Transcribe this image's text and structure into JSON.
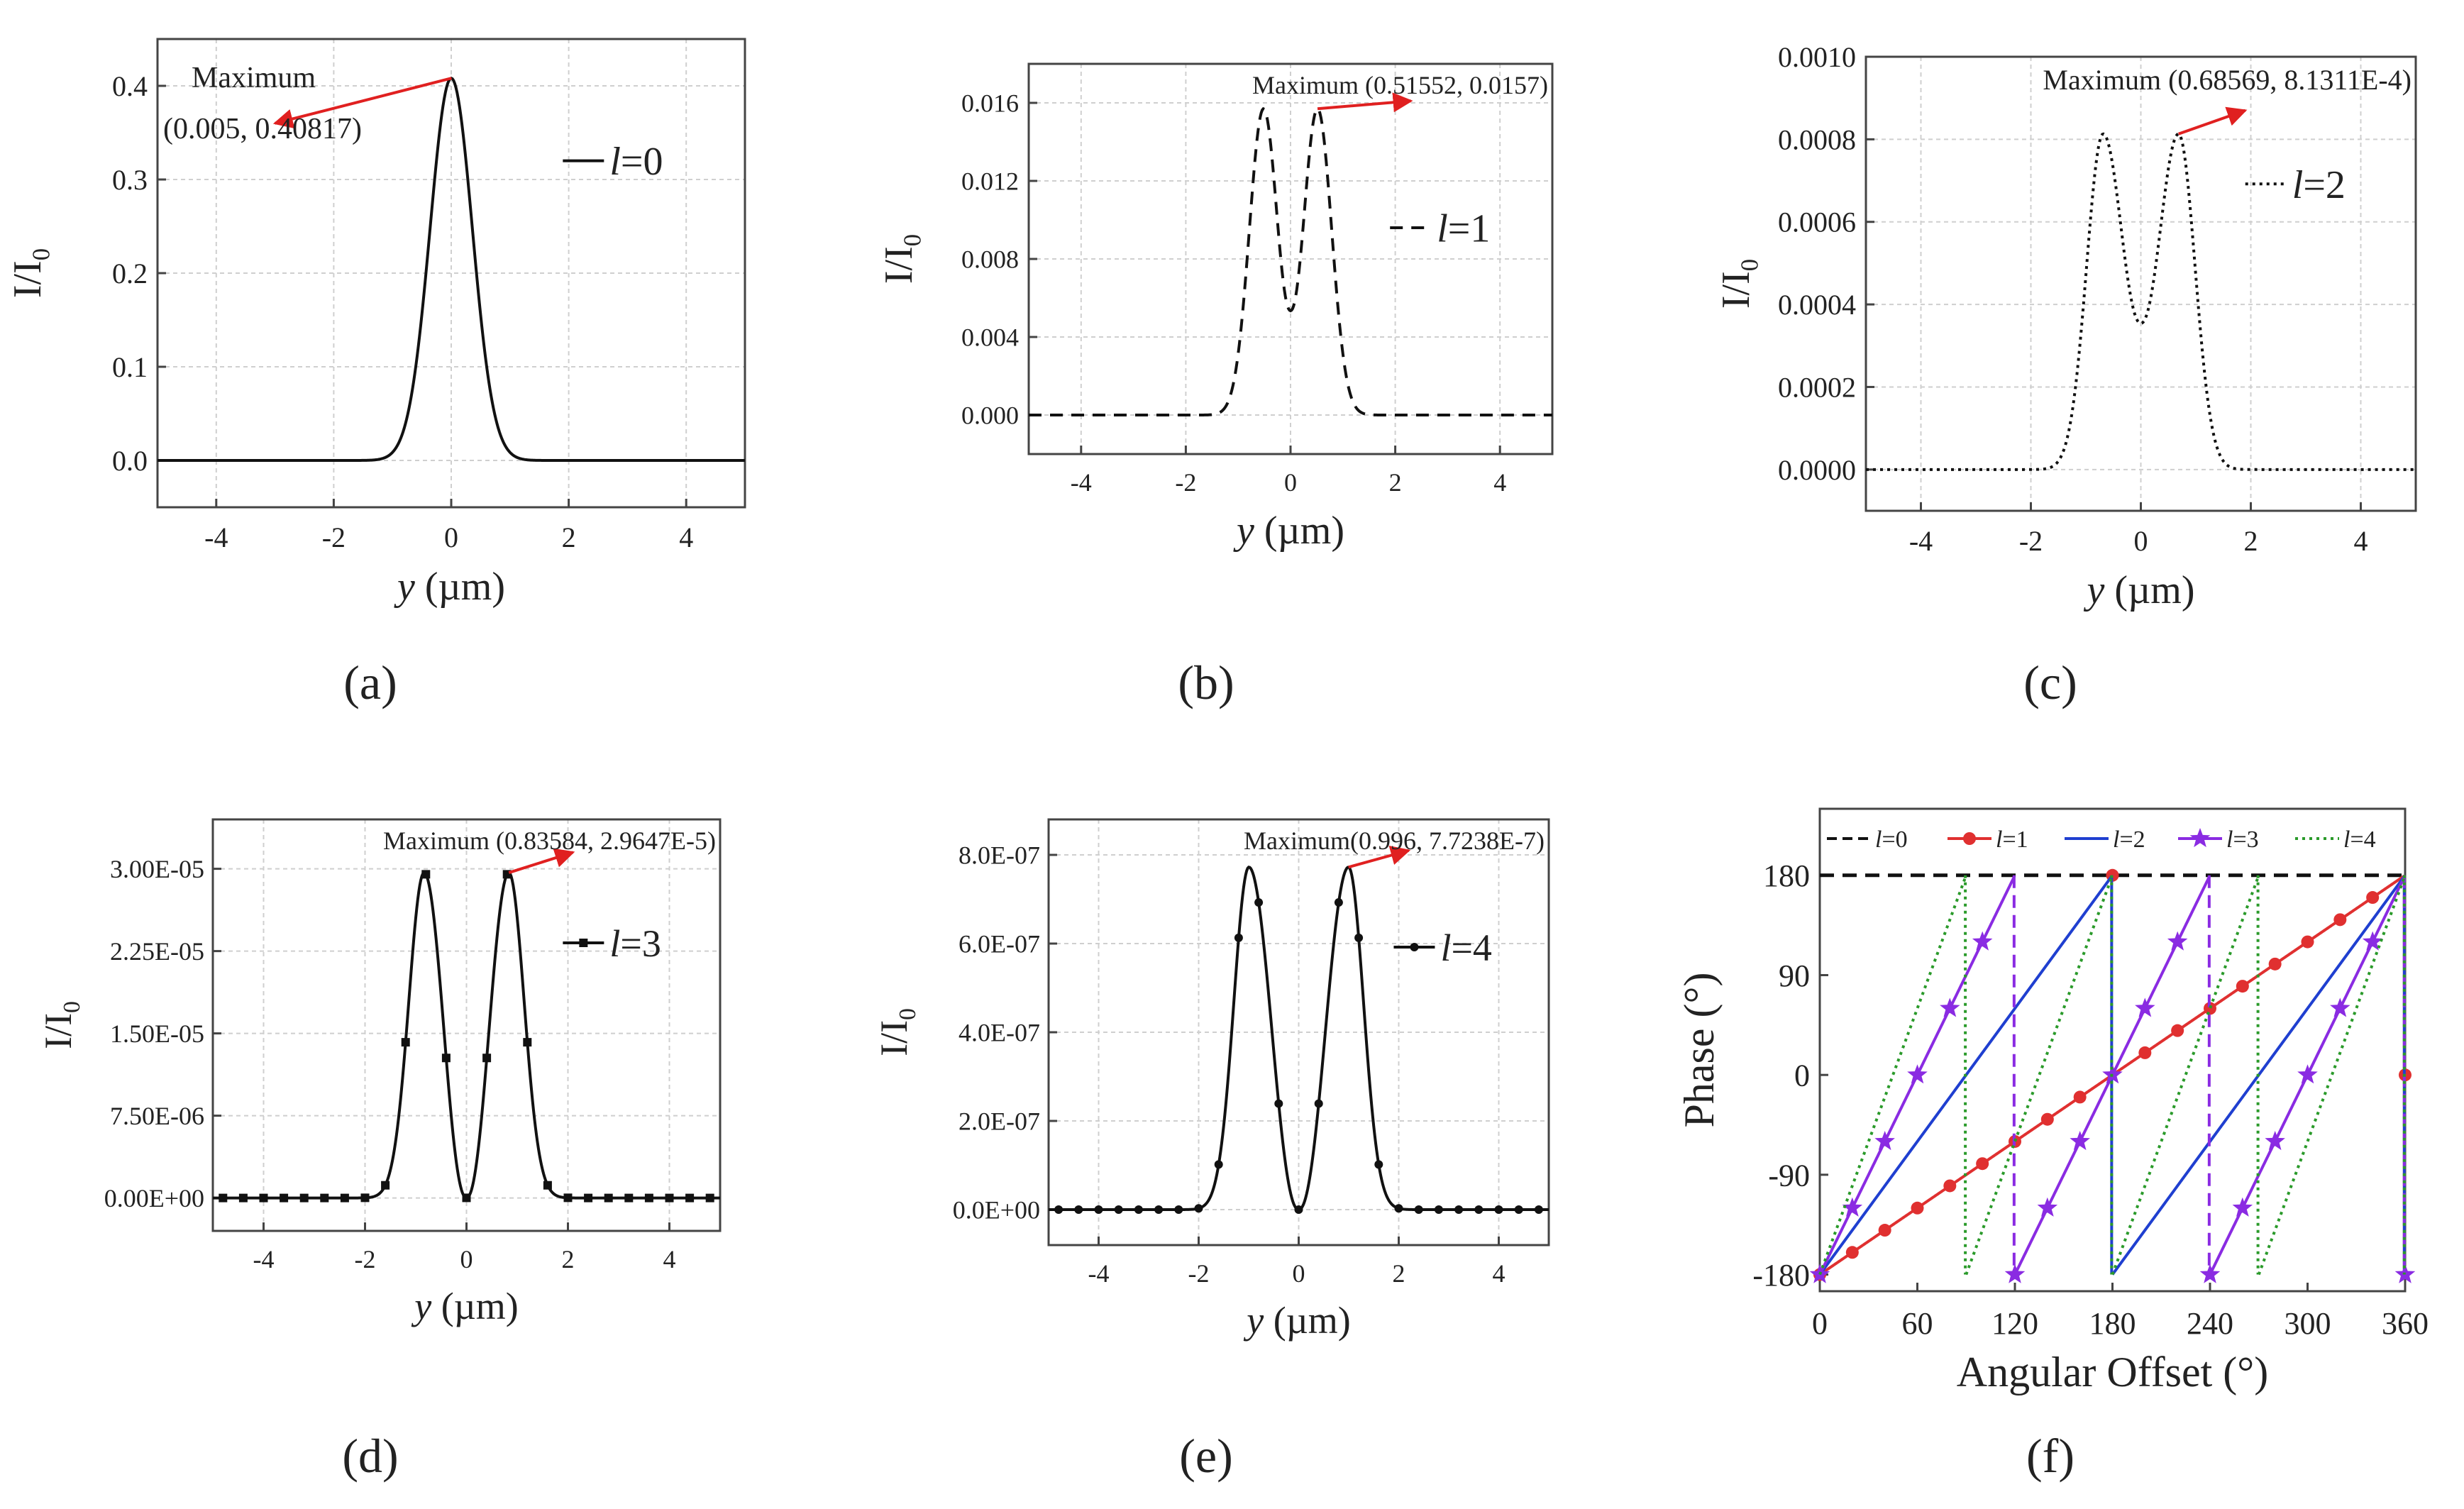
{
  "figure": {
    "panel_labels": [
      "(a)",
      "(b)",
      "(c)",
      "(d)",
      "(e)",
      "(f)"
    ]
  },
  "chart_data": [
    {
      "id": "a",
      "type": "line",
      "xlabel_var": "y",
      "xlabel_unit": "(µm)",
      "ylabel_main": "I/I",
      "ylabel_sub": "0",
      "xlim": [
        -5,
        5
      ],
      "ylim": [
        -0.05,
        0.45
      ],
      "xticks": [
        -4,
        -2,
        0,
        2,
        4
      ],
      "xtick_labels": [
        "-4",
        "-2",
        "0",
        "2",
        "4"
      ],
      "yticks": [
        0.0,
        0.1,
        0.2,
        0.3,
        0.4
      ],
      "ytick_labels": [
        "0.0",
        "0.1",
        "0.2",
        "0.3",
        "0.4"
      ],
      "grid": true,
      "series": [
        {
          "legend_var": "l",
          "legend_value": "=0",
          "style": "solid",
          "color": "#111111",
          "peak": 0.40817,
          "center": 0,
          "width": 0.4,
          "l": 0
        }
      ],
      "annotation": {
        "lines": [
          "Maximum",
          "(0.005, 0.40817)"
        ],
        "point": [
          0.005,
          0.40817
        ],
        "arrow_to": [
          -3.0,
          0.36
        ],
        "arrow_color": "#e02020"
      },
      "legend_position": "right"
    },
    {
      "id": "b",
      "type": "line",
      "xlabel_var": "y",
      "xlabel_unit": "(µm)",
      "ylabel_main": "I/I",
      "ylabel_sub": "0",
      "xlim": [
        -5,
        5
      ],
      "ylim": [
        -0.002,
        0.018
      ],
      "xticks": [
        -4,
        -2,
        0,
        2,
        4
      ],
      "xtick_labels": [
        "-4",
        "-2",
        "0",
        "2",
        "4"
      ],
      "yticks": [
        0.0,
        0.004,
        0.008,
        0.012,
        0.016
      ],
      "ytick_labels": [
        "0.000",
        "0.004",
        "0.008",
        "0.012",
        "0.016"
      ],
      "grid": true,
      "series": [
        {
          "legend_var": "l",
          "legend_value": "=1",
          "style": "dashed",
          "color": "#111111",
          "peak": 0.0157,
          "center": 0.51552,
          "width": 0.27,
          "l": 1,
          "center_value": 0.0054
        }
      ],
      "annotation": {
        "lines": [
          "Maximum (0.51552, 0.0157)"
        ],
        "point": [
          0.51552,
          0.0157
        ],
        "arrow_to": [
          2.3,
          0.0161
        ],
        "arrow_color": "#e02020"
      },
      "legend_position": "right"
    },
    {
      "id": "c",
      "type": "line",
      "xlabel_var": "y",
      "xlabel_unit": "(µm)",
      "ylabel_main": "I/I",
      "ylabel_sub": "0",
      "xlim": [
        -5,
        5
      ],
      "ylim": [
        -0.0001,
        0.001
      ],
      "xticks": [
        -4,
        -2,
        0,
        2,
        4
      ],
      "xtick_labels": [
        "-4",
        "-2",
        "0",
        "2",
        "4"
      ],
      "yticks": [
        0.0,
        0.0002,
        0.0004,
        0.0006,
        0.0008,
        0.001
      ],
      "ytick_labels": [
        "0.0000",
        "0.0002",
        "0.0004",
        "0.0006",
        "0.0008",
        "0.0010"
      ],
      "grid": true,
      "series": [
        {
          "legend_var": "l",
          "legend_value": "=2",
          "style": "dotted",
          "color": "#111111",
          "peak": 0.00081311,
          "center": 0.68569,
          "width": 0.3,
          "l": 2,
          "center_value": 0.00036
        }
      ],
      "annotation": {
        "lines": [
          "Maximum (0.68569, 8.1311E-4)"
        ],
        "point": [
          0.68569,
          0.00081311
        ],
        "arrow_to": [
          1.9,
          0.00087
        ],
        "arrow_color": "#e02020"
      },
      "legend_position": "right"
    },
    {
      "id": "d",
      "type": "line",
      "xlabel_var": "y",
      "xlabel_unit": "(µm)",
      "ylabel_main": "I/I",
      "ylabel_sub": "0",
      "xlim": [
        -5,
        5
      ],
      "ylim": [
        -3e-06,
        3.45e-05
      ],
      "xticks": [
        -4,
        -2,
        0,
        2,
        4
      ],
      "xtick_labels": [
        "-4",
        "-2",
        "0",
        "2",
        "4"
      ],
      "yticks": [
        0.0,
        7.5e-06,
        1.5e-05,
        2.25e-05,
        3e-05
      ],
      "ytick_labels": [
        "0.00E+00",
        "7.50E-06",
        "1.50E-05",
        "2.25E-05",
        "3.00E-05"
      ],
      "grid": true,
      "series": [
        {
          "legend_var": "l",
          "legend_value": "=3",
          "style": "solid",
          "marker": "square",
          "color": "#111111",
          "peak": 2.9647e-05,
          "center": 0.83584,
          "width": 0.3,
          "l": 3,
          "center_value": 0.0
        }
      ],
      "annotation": {
        "lines": [
          "Maximum (0.83584, 2.9647E-5)"
        ],
        "point": [
          0.83584,
          2.9647e-05
        ],
        "arrow_to": [
          2.1,
          3.15e-05
        ],
        "arrow_color": "#e02020"
      },
      "legend_position": "right"
    },
    {
      "id": "e",
      "type": "line",
      "xlabel_var": "y",
      "xlabel_unit": "(µm)",
      "ylabel_main": "I/I",
      "ylabel_sub": "0",
      "xlim": [
        -5,
        5
      ],
      "ylim": [
        -8e-08,
        8.8e-07
      ],
      "xticks": [
        -4,
        -2,
        0,
        2,
        4
      ],
      "xtick_labels": [
        "-4",
        "-2",
        "0",
        "2",
        "4"
      ],
      "yticks": [
        0.0,
        2e-07,
        4e-07,
        6e-07,
        8e-07
      ],
      "ytick_labels": [
        "0.0E+00",
        "2.0E-07",
        "4.0E-07",
        "6.0E-07",
        "8.0E-07"
      ],
      "grid": true,
      "series": [
        {
          "legend_var": "l",
          "legend_value": "=4",
          "style": "solid",
          "marker": "circle",
          "color": "#111111",
          "peak": 7.7238e-07,
          "center": 0.996,
          "width": 0.3,
          "l": 4,
          "center_value": 0.0
        }
      ],
      "annotation": {
        "lines": [
          "Maximum(0.996, 7.7238E-7)"
        ],
        "point": [
          0.996,
          7.7238e-07
        ],
        "arrow_to": [
          2.2,
          8.1e-07
        ],
        "arrow_color": "#e02020"
      },
      "legend_position": "right"
    },
    {
      "id": "f",
      "type": "line",
      "xlabel": "Angular Offset (°)",
      "ylabel": "Phase (°)",
      "xlim": [
        0,
        360
      ],
      "ylim": [
        -195,
        240
      ],
      "xticks": [
        0,
        60,
        120,
        180,
        240,
        300,
        360
      ],
      "xtick_labels": [
        "0",
        "60",
        "120",
        "180",
        "240",
        "300",
        "360"
      ],
      "yticks": [
        -180,
        -90,
        0,
        90,
        180
      ],
      "ytick_labels": [
        "-180",
        "-90",
        "0",
        "90",
        "180"
      ],
      "grid": false,
      "legend_position": "top",
      "series": [
        {
          "legend_var": "l",
          "legend_value": "=0",
          "color": "#111111",
          "style": "dashed",
          "marker": "none",
          "l": 0
        },
        {
          "legend_var": "l",
          "legend_value": "=1",
          "color": "#e03030",
          "style": "solid",
          "marker": "circle",
          "l": 1
        },
        {
          "legend_var": "l",
          "legend_value": "=2",
          "color": "#1f3fd0",
          "style": "solid",
          "marker": "none",
          "l": 2
        },
        {
          "legend_var": "l",
          "legend_value": "=3",
          "color": "#8a2be2",
          "style": "solid",
          "marker": "star",
          "l": 3
        },
        {
          "legend_var": "l",
          "legend_value": "=4",
          "color": "#2a9a2a",
          "style": "dotted",
          "marker": "none",
          "l": 4
        }
      ]
    }
  ]
}
